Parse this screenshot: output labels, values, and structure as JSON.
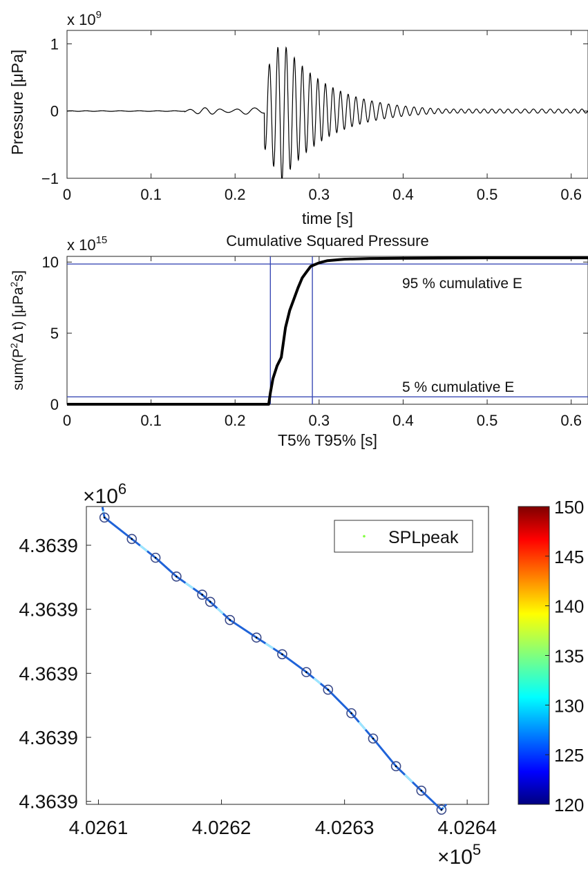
{
  "chart_data": [
    {
      "type": "line",
      "title": "",
      "exponent_label": "x 10",
      "exponent_power": "9",
      "xlabel": "time [s]",
      "ylabel": "Pressure [μPa]",
      "xlim": [
        0,
        0.62
      ],
      "ylim": [
        -1,
        1.2
      ],
      "x_ticks": [
        0,
        0.1,
        0.2,
        0.3,
        0.4,
        0.5,
        0.6
      ],
      "x_tick_labels": [
        "0",
        "0.1",
        "0.2",
        "0.3",
        "0.4",
        "0.5",
        "0.6"
      ],
      "y_ticks": [
        -1,
        0,
        1
      ],
      "y_tick_labels": [
        "−1",
        "0",
        "1"
      ],
      "series": [
        {
          "color": "#000000",
          "description_points": {
            "x": [
              0,
              0.15,
              0.18,
              0.2,
              0.22,
              0.235,
              0.24,
              0.245,
              0.25,
              0.252,
              0.255,
              0.26,
              0.27,
              0.28,
              0.3,
              0.32,
              0.35,
              0.4,
              0.45,
              0.5,
              0.62
            ],
            "y": [
              0,
              0.01,
              0.02,
              0.03,
              0.04,
              0.05,
              0.7,
              -0.8,
              0.9,
              -0.9,
              1.15,
              -1.0,
              0.6,
              -0.7,
              0.3,
              -0.2,
              0.1,
              0.05,
              0.02,
              0.01,
              0
            ]
          }
        }
      ],
      "grid": false
    },
    {
      "type": "line",
      "title": "Cumulative Squared Pressure",
      "exponent_label": "x 10",
      "exponent_power": "15",
      "xlabel": "T5% T95% [s]",
      "ylabel": "sum(P²Δ t) [μPa²s]",
      "xlim": [
        0,
        0.62
      ],
      "ylim": [
        0,
        10.4
      ],
      "x_ticks": [
        0,
        0.1,
        0.2,
        0.3,
        0.4,
        0.5,
        0.6
      ],
      "x_tick_labels": [
        "0",
        "0.1",
        "0.2",
        "0.3",
        "0.4",
        "0.5",
        "0.6"
      ],
      "y_ticks": [
        0,
        5,
        10
      ],
      "y_tick_labels": [
        "0",
        "5",
        "10"
      ],
      "series": [
        {
          "color": "#000000",
          "x": [
            0,
            0.24,
            0.242,
            0.245,
            0.25,
            0.255,
            0.26,
            0.265,
            0.27,
            0.275,
            0.28,
            0.285,
            0.29,
            0.3,
            0.31,
            0.33,
            0.36,
            0.4,
            0.5,
            0.62
          ],
          "y": [
            0,
            0,
            0.8,
            1.8,
            2.7,
            3.3,
            5.4,
            6.6,
            7.4,
            8.2,
            8.9,
            9.3,
            9.7,
            9.95,
            10.1,
            10.2,
            10.25,
            10.27,
            10.3,
            10.3
          ]
        }
      ],
      "reference_lines": {
        "color": "#3b4bb5",
        "vertical_x": [
          0.242,
          0.292
        ],
        "horizontal_y": [
          0.52,
          9.86
        ]
      },
      "annotations": [
        "95 % cumulative E",
        "5 % cumulative E"
      ],
      "grid": false
    },
    {
      "type": "scatter",
      "title": "",
      "xlabel": "",
      "ylabel": "",
      "x_exponent": "×10",
      "x_exponent_power": "5",
      "y_exponent": "×10",
      "y_exponent_power": "6",
      "x_tick_labels": [
        "4.0261",
        "4.0262",
        "4.0263",
        "4.0264"
      ],
      "y_tick_labels": [
        "4.3639",
        "4.3639",
        "4.3639",
        "4.3639",
        "4.3639"
      ],
      "legend": {
        "label": "SPLpeak",
        "position": "top-right",
        "marker_color": "#7fff3a"
      },
      "colorbar": {
        "min": 120,
        "max": 150,
        "tick_labels": [
          "150",
          "145",
          "140",
          "135",
          "130",
          "125",
          "120"
        ],
        "colormap": [
          "#00007f",
          "#0000ff",
          "#007fff",
          "#00ffff",
          "#7fff7f",
          "#ffff00",
          "#ff7f00",
          "#ff0000",
          "#7f0000"
        ]
      },
      "track_color": "#1f63d8",
      "highlight_color": "#9be7ff",
      "circle_markers": {
        "x_fraction": [
          0.045,
          0.113,
          0.172,
          0.224,
          0.288,
          0.308,
          0.357,
          0.423,
          0.487,
          0.547,
          0.601,
          0.659,
          0.713,
          0.77,
          0.833,
          0.883
        ],
        "y_fraction": [
          0.963,
          0.891,
          0.828,
          0.765,
          0.704,
          0.68,
          0.619,
          0.56,
          0.504,
          0.444,
          0.385,
          0.306,
          0.221,
          0.128,
          0.046,
          -0.018
        ]
      }
    }
  ]
}
